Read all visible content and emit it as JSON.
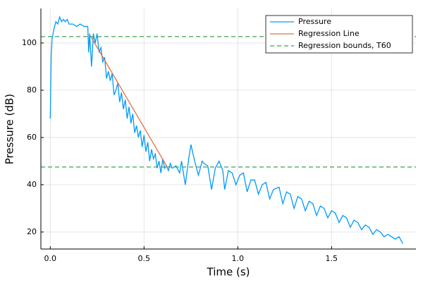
{
  "chart_data": {
    "type": "line",
    "xlabel": "Time (s)",
    "ylabel": "Pressure (dB)",
    "xlim": [
      -0.05,
      1.95
    ],
    "ylim": [
      12.8,
      114.6
    ],
    "xticks": [
      {
        "value": 0,
        "label": "0.0"
      },
      0.5,
      {
        "value": 1,
        "label": "1.0"
      },
      1.5
    ],
    "yticks": [
      20,
      40,
      60,
      80,
      100
    ],
    "grid": true,
    "legend": "top-right",
    "series": [
      {
        "name": "Pressure",
        "color": "#009afa",
        "x": [
          0,
          0.005,
          0.01,
          0.02,
          0.03,
          0.04,
          0.05,
          0.06,
          0.07,
          0.08,
          0.09,
          0.1,
          0.12,
          0.14,
          0.16,
          0.18,
          0.2,
          0.205,
          0.21,
          0.22,
          0.23,
          0.24,
          0.25,
          0.26,
          0.27,
          0.28,
          0.29,
          0.3,
          0.31,
          0.32,
          0.33,
          0.34,
          0.35,
          0.36,
          0.37,
          0.38,
          0.39,
          0.4,
          0.41,
          0.42,
          0.43,
          0.44,
          0.45,
          0.46,
          0.47,
          0.48,
          0.49,
          0.5,
          0.51,
          0.52,
          0.53,
          0.54,
          0.55,
          0.56,
          0.57,
          0.58,
          0.59,
          0.6,
          0.61,
          0.62,
          0.63,
          0.64,
          0.65,
          0.67,
          0.69,
          0.7,
          0.72,
          0.74,
          0.75,
          0.77,
          0.79,
          0.81,
          0.82,
          0.84,
          0.86,
          0.88,
          0.9,
          0.92,
          0.93,
          0.95,
          0.97,
          0.99,
          1.01,
          1.03,
          1.05,
          1.07,
          1.09,
          1.11,
          1.13,
          1.15,
          1.17,
          1.19,
          1.22,
          1.24,
          1.26,
          1.28,
          1.3,
          1.32,
          1.34,
          1.36,
          1.38,
          1.4,
          1.42,
          1.44,
          1.46,
          1.48,
          1.5,
          1.52,
          1.54,
          1.56,
          1.58,
          1.6,
          1.62,
          1.64,
          1.66,
          1.68,
          1.7,
          1.72,
          1.74,
          1.76,
          1.78,
          1.8,
          1.82,
          1.84,
          1.86,
          1.88
        ],
        "values": [
          68,
          95,
          102,
          106,
          109,
          108,
          111,
          109,
          110,
          109,
          110,
          108,
          108,
          107,
          108,
          107,
          107,
          96,
          104,
          90,
          104,
          100,
          104,
          96,
          98,
          92,
          94,
          85,
          88,
          84,
          87,
          78,
          80,
          83,
          75,
          79,
          72,
          76,
          68,
          73,
          66,
          70,
          62,
          65,
          60,
          63,
          56,
          61,
          54,
          58,
          50,
          55,
          51,
          53,
          47,
          50,
          45,
          51,
          47,
          48,
          46,
          49,
          47,
          48,
          45,
          50,
          40,
          52,
          57,
          50,
          44,
          50,
          49,
          48,
          38,
          47,
          50,
          46,
          38,
          46,
          45,
          40,
          44,
          45,
          37,
          42,
          42,
          36,
          40,
          41,
          34,
          38,
          39,
          32,
          37,
          36,
          30,
          35,
          34,
          29,
          33,
          32,
          27,
          31,
          30,
          26,
          29,
          28,
          24,
          27,
          26,
          22,
          25,
          24,
          21,
          23,
          22,
          19,
          21,
          20,
          18,
          19,
          18,
          17,
          18,
          15
        ]
      },
      {
        "name": "Regression Line",
        "color": "#e26f46",
        "x": [
          0.214,
          0.624
        ],
        "values": [
          103,
          47.5
        ]
      },
      {
        "name": "Regression bounds, T60",
        "color": "#3da44d",
        "style": "dash",
        "hlines": [
          102.7,
          47.5
        ]
      }
    ]
  }
}
